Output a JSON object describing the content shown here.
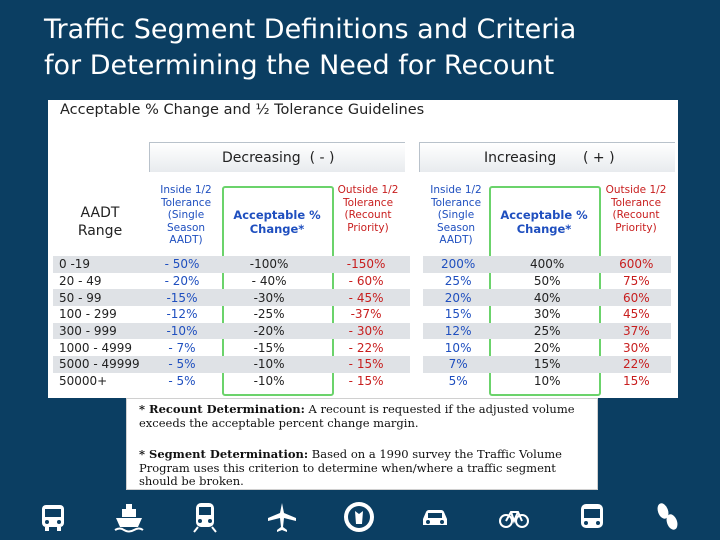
{
  "title": {
    "line1": "Traffic Segment Definitions and Criteria",
    "line2": "for Determining the Need for Recount"
  },
  "panel": {
    "title": "Acceptable % Change and ½ Tolerance Guidelines",
    "decreasing_label": "Decreasing  ( - )",
    "increasing_label": "Increasing      ( + )",
    "aadt_label_1": "AADT",
    "aadt_label_2": "Range",
    "headers": {
      "inside": "Inside 1/2 Tolerance (Single Season AADT)",
      "acceptable": "Acceptable % Change*",
      "outside": "Outside 1/2 Tolerance (Recount Priority)"
    },
    "rows": [
      {
        "range": "0 -19",
        "d_in": "- 50%",
        "d_acc": "-100%",
        "d_out": "-150%",
        "i_in": "200%",
        "i_acc": "400%",
        "i_out": "600%"
      },
      {
        "range": "20 - 49",
        "d_in": "- 20%",
        "d_acc": "- 40%",
        "d_out": "- 60%",
        "i_in": "25%",
        "i_acc": "50%",
        "i_out": "75%"
      },
      {
        "range": "50 - 99",
        "d_in": "-15%",
        "d_acc": "-30%",
        "d_out": "- 45%",
        "i_in": "20%",
        "i_acc": "40%",
        "i_out": "60%"
      },
      {
        "range": "100 - 299",
        "d_in": "-12%",
        "d_acc": "-25%",
        "d_out": "-37%",
        "i_in": "15%",
        "i_acc": "30%",
        "i_out": "45%"
      },
      {
        "range": "300 - 999",
        "d_in": "-10%",
        "d_acc": "-20%",
        "d_out": "- 30%",
        "i_in": "12%",
        "i_acc": "25%",
        "i_out": "37%"
      },
      {
        "range": "1000 - 4999",
        "d_in": "- 7%",
        "d_acc": "-15%",
        "d_out": "- 22%",
        "i_in": "10%",
        "i_acc": "20%",
        "i_out": "30%"
      },
      {
        "range": "5000 - 49999",
        "d_in": "- 5%",
        "d_acc": "-10%",
        "d_out": "- 15%",
        "i_in": "7%",
        "i_acc": "15%",
        "i_out": "22%"
      },
      {
        "range": "50000+",
        "d_in": "- 5%",
        "d_acc": "-10%",
        "d_out": "- 15%",
        "i_in": "5%",
        "i_acc": "10%",
        "i_out": "15%"
      }
    ]
  },
  "note": {
    "recount_label": "* Recount Determination:",
    "recount_text": " A recount is requested if the adjusted volume exceeds the acceptable percent change margin.",
    "segment_label": "* Segment Determination:",
    "segment_text": " Based on a 1990 survey the Traffic Volume Program uses this criterion to determine when/where a traffic segment should be broken."
  },
  "footer_icons": [
    "bus-icon",
    "ship-icon",
    "train-icon",
    "airplane-icon",
    "dot-seal-icon",
    "car-icon",
    "bicycle-icon",
    "bus-front-icon",
    "footprints-icon"
  ],
  "colors": {
    "background": "#0b3e62",
    "blue_text": "#1f4fbf",
    "red_text": "#c81e1e",
    "green_box": "#6bd36b",
    "shaded_row": "#dfe2e6"
  }
}
